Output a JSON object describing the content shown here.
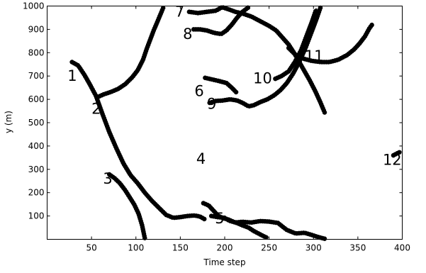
{
  "chart_data": {
    "type": "line",
    "title": "",
    "xlabel": "Time step",
    "ylabel": "y (m)",
    "xlim": [
      0,
      400
    ],
    "ylim": [
      0,
      1000
    ],
    "xticks": [
      50,
      100,
      150,
      200,
      250,
      300,
      350,
      400
    ],
    "yticks": [
      100,
      200,
      300,
      400,
      500,
      600,
      700,
      800,
      900,
      1000
    ],
    "grid": false,
    "legend": "none",
    "color": "#000000",
    "series": [
      {
        "label": "1",
        "label_at": [
          23,
          700
        ],
        "points": [
          [
            28,
            760
          ],
          [
            35,
            745
          ],
          [
            42,
            705
          ],
          [
            48,
            665
          ],
          [
            55,
            615
          ],
          [
            62,
            540
          ],
          [
            70,
            460
          ],
          [
            78,
            390
          ],
          [
            86,
            325
          ],
          [
            94,
            275
          ],
          [
            102,
            240
          ],
          [
            110,
            200
          ],
          [
            118,
            165
          ],
          [
            126,
            135
          ],
          [
            134,
            105
          ],
          [
            142,
            92
          ],
          [
            150,
            95
          ],
          [
            158,
            100
          ],
          [
            166,
            102
          ],
          [
            172,
            98
          ],
          [
            178,
            85
          ]
        ]
      },
      {
        "label": "2",
        "label_at": [
          50,
          560
        ],
        "points": [
          [
            57,
            610
          ],
          [
            64,
            622
          ],
          [
            72,
            632
          ],
          [
            80,
            645
          ],
          [
            88,
            665
          ],
          [
            96,
            695
          ],
          [
            102,
            725
          ],
          [
            108,
            770
          ],
          [
            112,
            815
          ],
          [
            116,
            855
          ],
          [
            120,
            895
          ],
          [
            125,
            940
          ],
          [
            131,
            995
          ]
        ]
      },
      {
        "label": "3",
        "label_at": [
          63,
          260
        ],
        "points": [
          [
            70,
            278
          ],
          [
            76,
            262
          ],
          [
            82,
            240
          ],
          [
            88,
            210
          ],
          [
            93,
            180
          ],
          [
            98,
            150
          ],
          [
            103,
            110
          ],
          [
            107,
            60
          ],
          [
            110,
            5
          ]
        ]
      },
      {
        "label": "4",
        "label_at": [
          168,
          345
        ],
        "points": [
          [
            176,
            155
          ],
          [
            182,
            145
          ],
          [
            188,
            120
          ],
          [
            193,
            100
          ],
          [
            199,
            90
          ],
          [
            204,
            85
          ],
          [
            210,
            75
          ],
          [
            215,
            68
          ],
          [
            220,
            60
          ],
          [
            227,
            50
          ],
          [
            233,
            35
          ],
          [
            238,
            25
          ],
          [
            243,
            15
          ],
          [
            247,
            8
          ]
        ]
      },
      {
        "label": "5",
        "label_at": [
          189,
          90
        ],
        "points": [
          [
            185,
            100
          ],
          [
            192,
            95
          ],
          [
            200,
            92
          ],
          [
            205,
            80
          ],
          [
            212,
            72
          ],
          [
            220,
            75
          ],
          [
            230,
            72
          ],
          [
            240,
            78
          ],
          [
            250,
            76
          ],
          [
            260,
            70
          ],
          [
            265,
            55
          ],
          [
            270,
            40
          ],
          [
            280,
            25
          ],
          [
            290,
            28
          ],
          [
            297,
            20
          ],
          [
            305,
            10
          ],
          [
            313,
            2
          ]
        ]
      },
      {
        "label": "6",
        "label_at": [
          166,
          635
        ],
        "points": [
          [
            178,
            692
          ],
          [
            186,
            685
          ],
          [
            194,
            678
          ],
          [
            202,
            670
          ],
          [
            208,
            650
          ],
          [
            213,
            630
          ]
        ]
      },
      {
        "label": "7",
        "label_at": [
          144,
          975
        ],
        "points": [
          [
            160,
            975
          ],
          [
            170,
            970
          ],
          [
            180,
            975
          ],
          [
            190,
            980
          ],
          [
            197,
            995
          ],
          [
            205,
            985
          ],
          [
            212,
            975
          ],
          [
            220,
            968
          ],
          [
            230,
            955
          ],
          [
            240,
            935
          ],
          [
            250,
            915
          ],
          [
            258,
            895
          ],
          [
            265,
            865
          ],
          [
            272,
            835
          ],
          [
            278,
            800
          ],
          [
            284,
            760
          ],
          [
            290,
            720
          ],
          [
            296,
            680
          ],
          [
            302,
            635
          ],
          [
            308,
            585
          ],
          [
            313,
            540
          ]
        ]
      },
      {
        "label": "8",
        "label_at": [
          153,
          880
        ],
        "points": [
          [
            165,
            900
          ],
          [
            172,
            900
          ],
          [
            180,
            895
          ],
          [
            188,
            885
          ],
          [
            196,
            880
          ],
          [
            202,
            895
          ],
          [
            208,
            920
          ],
          [
            214,
            950
          ],
          [
            220,
            975
          ],
          [
            227,
            995
          ]
        ]
      },
      {
        "label": "9",
        "label_at": [
          180,
          580
        ],
        "points": [
          [
            183,
            585
          ],
          [
            190,
            593
          ],
          [
            198,
            595
          ],
          [
            206,
            600
          ],
          [
            214,
            595
          ],
          [
            220,
            585
          ],
          [
            227,
            570
          ],
          [
            233,
            575
          ],
          [
            240,
            588
          ],
          [
            248,
            600
          ],
          [
            256,
            618
          ],
          [
            263,
            640
          ],
          [
            270,
            670
          ],
          [
            277,
            710
          ],
          [
            284,
            760
          ],
          [
            291,
            820
          ],
          [
            297,
            880
          ],
          [
            303,
            940
          ],
          [
            308,
            995
          ]
        ]
      },
      {
        "label": "10",
        "label_at": [
          232,
          690
        ],
        "points": [
          [
            257,
            688
          ],
          [
            264,
            700
          ],
          [
            272,
            720
          ],
          [
            279,
            760
          ],
          [
            286,
            810
          ],
          [
            292,
            870
          ],
          [
            298,
            930
          ],
          [
            303,
            985
          ]
        ]
      },
      {
        "label": "11",
        "label_at": [
          290,
          785
        ],
        "points": [
          [
            272,
            820
          ],
          [
            280,
            790
          ],
          [
            288,
            775
          ],
          [
            298,
            765
          ],
          [
            308,
            760
          ],
          [
            318,
            760
          ],
          [
            328,
            770
          ],
          [
            338,
            790
          ],
          [
            346,
            815
          ],
          [
            352,
            840
          ],
          [
            358,
            870
          ],
          [
            363,
            905
          ],
          [
            366,
            920
          ]
        ]
      },
      {
        "label": "12",
        "label_at": [
          378,
          340
        ],
        "points": [
          [
            390,
            360
          ],
          [
            394,
            368
          ],
          [
            398,
            375
          ]
        ]
      }
    ]
  }
}
